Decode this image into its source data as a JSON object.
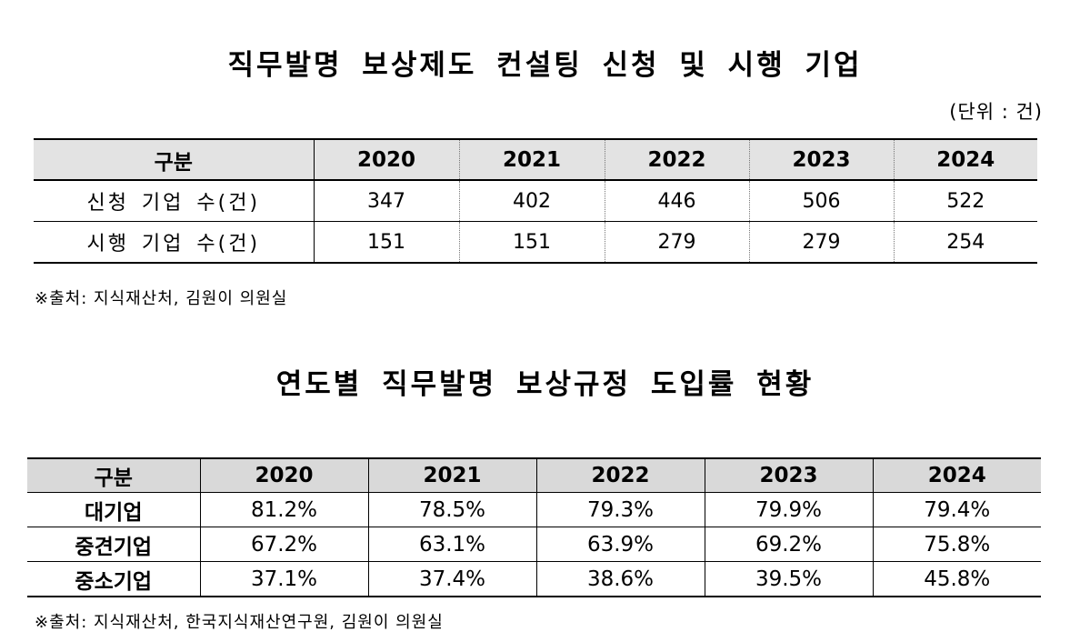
{
  "table1": {
    "title": "직무발명 보상제도 컨설팅 신청 및 시행 기업",
    "unit": "(단위 : 건)",
    "header": [
      "구분",
      "2020",
      "2021",
      "2022",
      "2023",
      "2024"
    ],
    "rows": [
      {
        "label": "신청 기업 수(건)",
        "values": [
          "347",
          "402",
          "446",
          "506",
          "522"
        ]
      },
      {
        "label": "시행 기업 수(건)",
        "values": [
          "151",
          "151",
          "279",
          "279",
          "254"
        ]
      }
    ],
    "source": "※출처: 지식재산처, 김원이 의원실"
  },
  "table2": {
    "title": "연도별 직무발명 보상규정 도입률 현황",
    "header": [
      "구분",
      "2020",
      "2021",
      "2022",
      "2023",
      "2024"
    ],
    "rows": [
      {
        "label": "대기업",
        "values": [
          "81.2%",
          "78.5%",
          "79.3%",
          "79.9%",
          "79.4%"
        ]
      },
      {
        "label": "중견기업",
        "values": [
          "67.2%",
          "63.1%",
          "63.9%",
          "69.2%",
          "75.8%"
        ]
      },
      {
        "label": "중소기업",
        "values": [
          "37.1%",
          "37.4%",
          "38.6%",
          "39.5%",
          "45.8%"
        ]
      }
    ],
    "source": "※출처: 지식재산처, 한국지식재산연구원, 김원이 의원실"
  }
}
